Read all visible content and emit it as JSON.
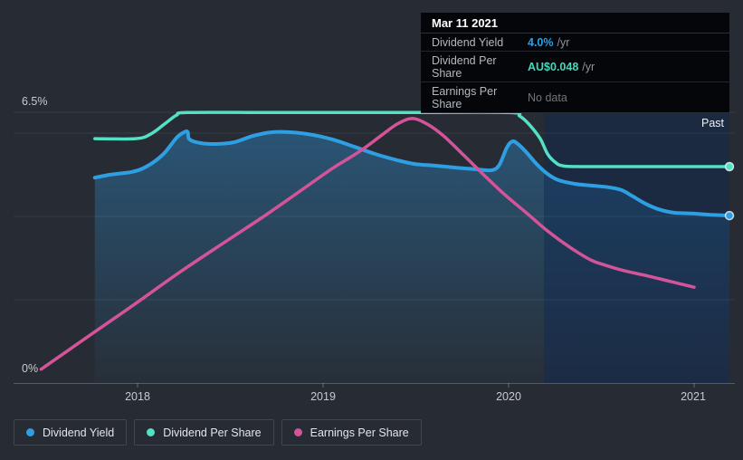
{
  "page": {
    "background": "#272c34"
  },
  "tooltip": {
    "date": "Mar 11 2021",
    "rows": [
      {
        "label": "Dividend Yield",
        "value": "4.0%",
        "suffix": "/yr",
        "value_color": "#2f9fe3"
      },
      {
        "label": "Dividend Per Share",
        "value": "AU$0.048",
        "suffix": "/yr",
        "value_color": "#43d9bd"
      },
      {
        "label": "Earnings Per Share",
        "value": "No data",
        "suffix": "",
        "value_color": "#71767b"
      }
    ]
  },
  "axis": {
    "y_top_label": "6.5%",
    "y_bottom_label": "0%",
    "x_labels": [
      "2018",
      "2019",
      "2020",
      "2021"
    ],
    "past_label": "Past"
  },
  "legend": [
    {
      "label": "Dividend Yield",
      "color": "#2f9fe3"
    },
    {
      "label": "Dividend Per Share",
      "color": "#53e0c4"
    },
    {
      "label": "Earnings Per Share",
      "color": "#d4549a"
    }
  ],
  "chart_data": {
    "type": "line",
    "title": "Dividend history",
    "x_axis": {
      "unit": "year",
      "ticks": [
        2018,
        2019,
        2020,
        2021
      ],
      "range": [
        2017.35,
        2021.22
      ]
    },
    "y_axis": {
      "unit": "%",
      "range": [
        0,
        6.5
      ],
      "top_label": "6.5%",
      "bottom_label": "0%",
      "gridlines_pct": [
        2,
        4,
        6,
        6.5
      ]
    },
    "legend_position": "bottom-left",
    "annotations": {
      "past_label": "Past",
      "highlight_band_years": [
        2020.19,
        2021.19
      ]
    },
    "series": [
      {
        "name": "Dividend Yield",
        "color": "#2f9fe3",
        "unit": "%",
        "width": 4,
        "end_dot": true,
        "area_fill": true,
        "points": [
          [
            2017.77,
            4.93
          ],
          [
            2017.85,
            5.0
          ],
          [
            2017.97,
            5.07
          ],
          [
            2018.05,
            5.2
          ],
          [
            2018.14,
            5.5
          ],
          [
            2018.21,
            5.89
          ],
          [
            2018.25,
            6.02
          ],
          [
            2018.27,
            6.03
          ],
          [
            2018.28,
            5.85
          ],
          [
            2018.34,
            5.76
          ],
          [
            2018.43,
            5.74
          ],
          [
            2018.52,
            5.78
          ],
          [
            2018.62,
            5.93
          ],
          [
            2018.72,
            6.02
          ],
          [
            2018.83,
            6.02
          ],
          [
            2018.94,
            5.96
          ],
          [
            2019.05,
            5.85
          ],
          [
            2019.17,
            5.67
          ],
          [
            2019.28,
            5.5
          ],
          [
            2019.4,
            5.35
          ],
          [
            2019.49,
            5.26
          ],
          [
            2019.6,
            5.22
          ],
          [
            2019.72,
            5.17
          ],
          [
            2019.83,
            5.13
          ],
          [
            2019.91,
            5.11
          ],
          [
            2019.95,
            5.24
          ],
          [
            2019.99,
            5.65
          ],
          [
            2020.02,
            5.8
          ],
          [
            2020.05,
            5.74
          ],
          [
            2020.1,
            5.52
          ],
          [
            2020.15,
            5.26
          ],
          [
            2020.21,
            5.02
          ],
          [
            2020.27,
            4.87
          ],
          [
            2020.36,
            4.78
          ],
          [
            2020.45,
            4.74
          ],
          [
            2020.54,
            4.7
          ],
          [
            2020.61,
            4.63
          ],
          [
            2020.67,
            4.48
          ],
          [
            2020.74,
            4.3
          ],
          [
            2020.81,
            4.17
          ],
          [
            2020.89,
            4.09
          ],
          [
            2020.99,
            4.07
          ],
          [
            2021.09,
            4.04
          ],
          [
            2021.19,
            4.02
          ]
        ]
      },
      {
        "name": "Dividend Per Share",
        "color": "#53e0c4",
        "unit": "AU$",
        "width": 3.5,
        "end_dot": true,
        "area_fill": false,
        "points": [
          [
            2017.77,
            0.0542
          ],
          [
            2017.99,
            0.0542
          ],
          [
            2018.07,
            0.0552
          ],
          [
            2018.15,
            0.0576
          ],
          [
            2018.21,
            0.0594
          ],
          [
            2018.27,
            0.06
          ],
          [
            2018.72,
            0.06
          ],
          [
            2019.45,
            0.06
          ],
          [
            2020.0,
            0.06
          ],
          [
            2020.06,
            0.0592
          ],
          [
            2020.11,
            0.0574
          ],
          [
            2020.17,
            0.0542
          ],
          [
            2020.21,
            0.0508
          ],
          [
            2020.25,
            0.049
          ],
          [
            2020.29,
            0.0482
          ],
          [
            2020.38,
            0.048
          ],
          [
            2020.77,
            0.048
          ],
          [
            2021.19,
            0.048
          ]
        ]
      },
      {
        "name": "Earnings Per Share",
        "color": "#d4549a",
        "unit": "visual-pct-scale (no labeled axis)",
        "width": 3.5,
        "end_dot": false,
        "area_fill": false,
        "points": [
          [
            2017.48,
            0.33
          ],
          [
            2017.75,
            1.17
          ],
          [
            2017.99,
            1.91
          ],
          [
            2018.23,
            2.67
          ],
          [
            2018.48,
            3.41
          ],
          [
            2018.68,
            4.0
          ],
          [
            2018.87,
            4.59
          ],
          [
            2019.05,
            5.15
          ],
          [
            2019.2,
            5.57
          ],
          [
            2019.31,
            5.93
          ],
          [
            2019.4,
            6.22
          ],
          [
            2019.48,
            6.35
          ],
          [
            2019.56,
            6.22
          ],
          [
            2019.65,
            5.93
          ],
          [
            2019.76,
            5.46
          ],
          [
            2019.87,
            4.98
          ],
          [
            2019.98,
            4.52
          ],
          [
            2020.1,
            4.07
          ],
          [
            2020.21,
            3.65
          ],
          [
            2020.33,
            3.26
          ],
          [
            2020.44,
            2.96
          ],
          [
            2020.52,
            2.83
          ],
          [
            2020.62,
            2.7
          ],
          [
            2020.75,
            2.57
          ],
          [
            2020.88,
            2.43
          ],
          [
            2021.0,
            2.3
          ]
        ]
      }
    ]
  }
}
